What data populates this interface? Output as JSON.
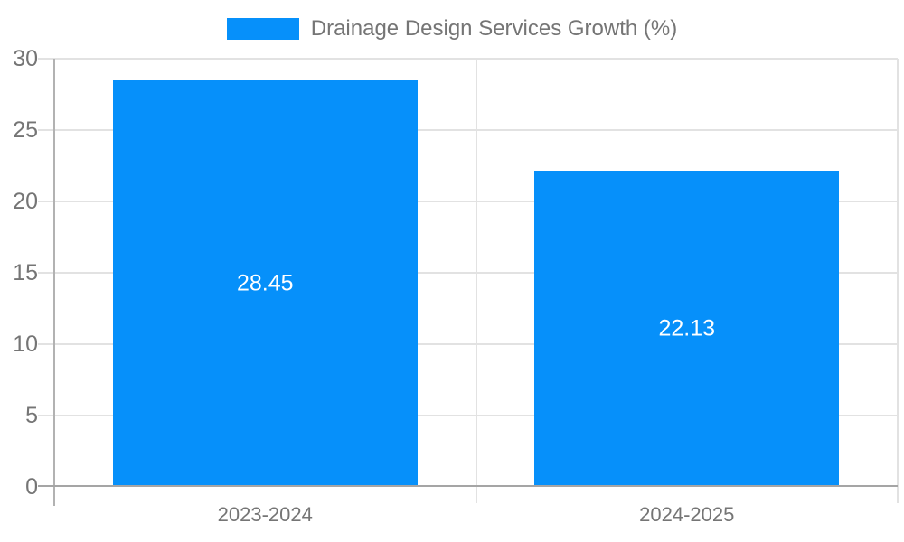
{
  "legend": {
    "label": "Drainage Design Services Growth (%)",
    "position": "top"
  },
  "colors": {
    "bar": "#0690FA",
    "gridline": "#E2E2E2",
    "baseline": "#A5A5A5",
    "axis_line": "#B2B2B2",
    "separator_line": "#E2E2E2",
    "tick_text": "#757575",
    "value_text": "#FFFFFF",
    "background": "#FFFFFF"
  },
  "chart_data": {
    "type": "bar",
    "title": "Drainage Design Services Growth (%)",
    "categories": [
      "2023-2024",
      "2024-2025"
    ],
    "values": [
      28.45,
      22.13
    ],
    "value_labels": [
      "28.45",
      "22.13"
    ],
    "xlabel": "",
    "ylabel": "",
    "ylim": [
      0,
      30
    ],
    "yticks": [
      0,
      5,
      10,
      15,
      20,
      25,
      30
    ],
    "grid": true,
    "legend_position": "top",
    "value_label_position": "center-inside"
  }
}
